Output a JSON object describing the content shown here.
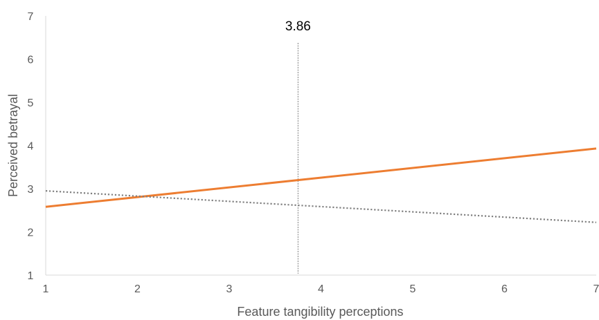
{
  "chart_data": {
    "type": "line",
    "xlabel": "Feature tangibility perceptions",
    "ylabel": "Perceived betrayal",
    "xlim": [
      1,
      7
    ],
    "ylim": [
      1,
      7
    ],
    "x_ticks": [
      "1",
      "2",
      "3",
      "4",
      "5",
      "6",
      "7"
    ],
    "y_ticks": [
      "1",
      "2",
      "3",
      "4",
      "5",
      "6",
      "7"
    ],
    "grid": false,
    "legend": "none",
    "series": [
      {
        "style": "solid",
        "color": "#ED7D31",
        "x": [
          1,
          7
        ],
        "y": [
          2.58,
          3.93
        ]
      },
      {
        "style": "dotted",
        "color": "#7F7F7F",
        "x": [
          1,
          7
        ],
        "y": [
          2.95,
          2.22
        ]
      }
    ],
    "annotations": [
      {
        "label": "3.86",
        "x": 3.75,
        "style": "vertical-dashed-line",
        "color": "#7F7F7F"
      }
    ]
  }
}
